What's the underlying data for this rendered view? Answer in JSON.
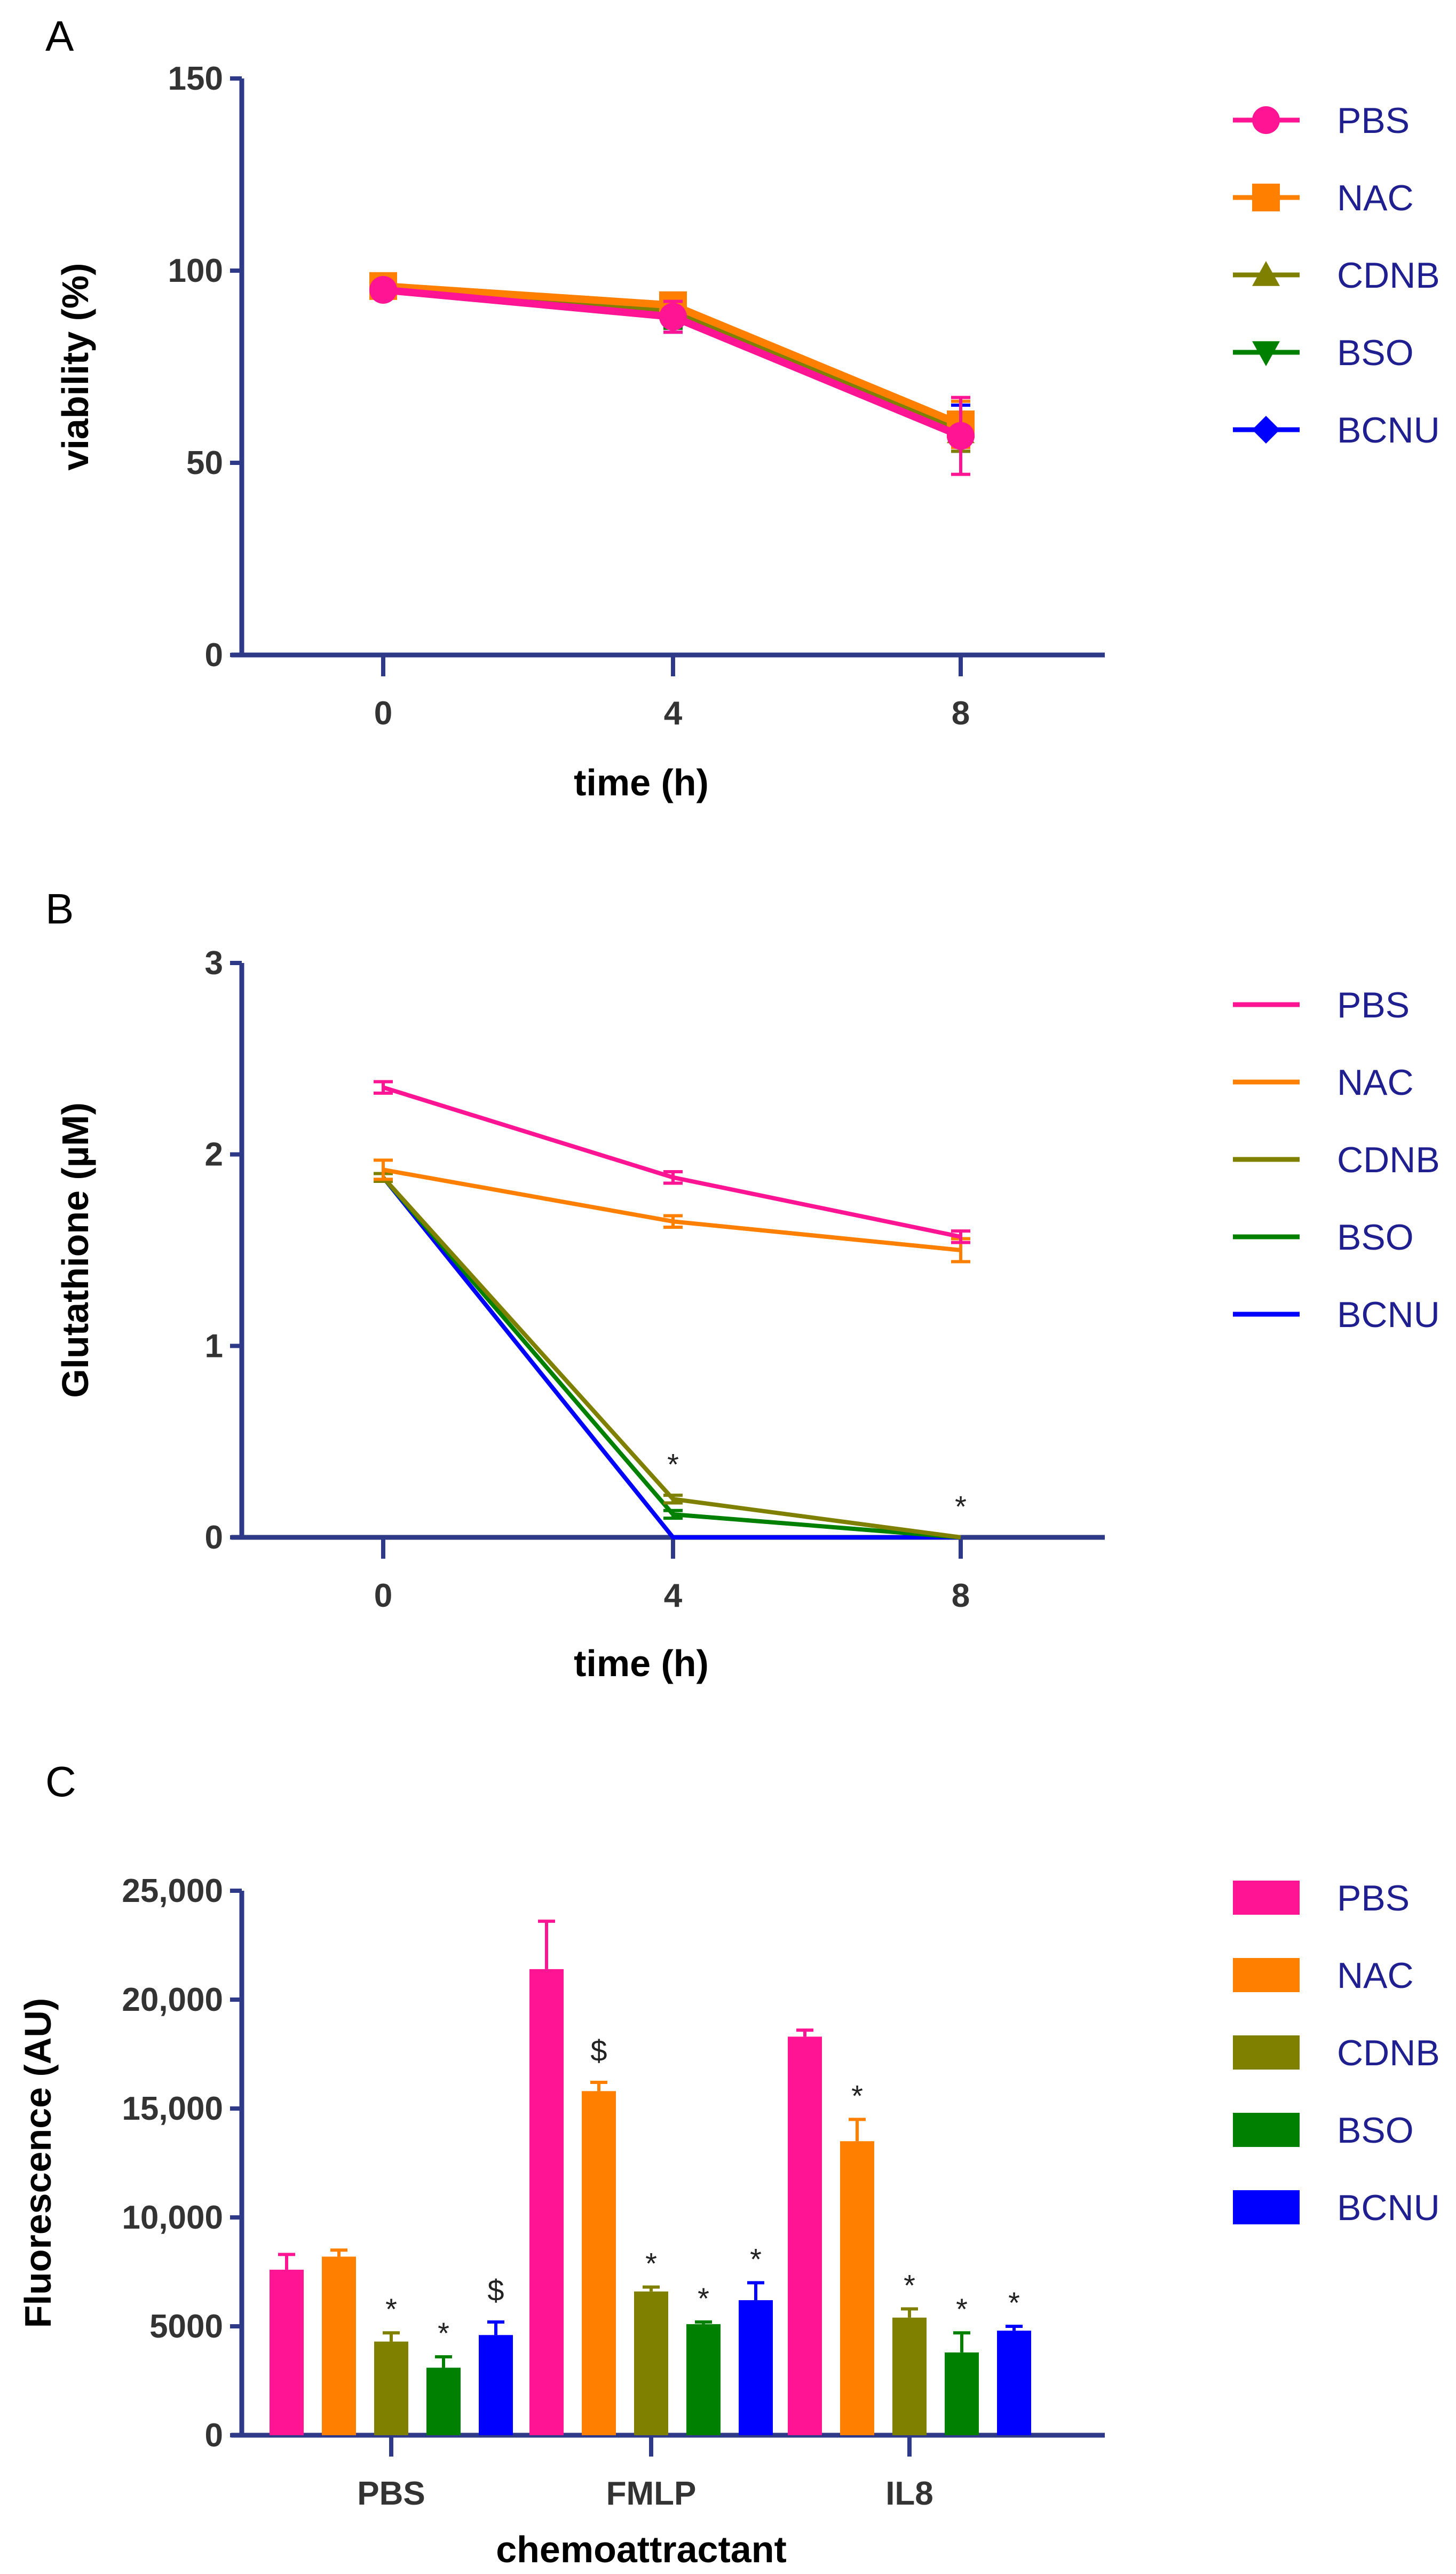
{
  "colors": {
    "PBS": "#ff1493",
    "NAC": "#ff8000",
    "CDNB": "#808000",
    "BSO": "#008000",
    "BCNU": "#0000ff",
    "axis": "#2e3a87"
  },
  "chart_data": [
    {
      "panel": "A",
      "type": "line",
      "xlabel": "time (h)",
      "ylabel": "viability (%)",
      "x": [
        0,
        4,
        8
      ],
      "xticks": [
        "0",
        "4",
        "8"
      ],
      "yticks": [
        "0",
        "50",
        "100",
        "150"
      ],
      "ylim": [
        0,
        150
      ],
      "legend": "right",
      "series": [
        {
          "name": "PBS",
          "marker": "circle",
          "values": [
            95,
            88,
            57
          ],
          "errors": [
            1.5,
            4,
            10
          ]
        },
        {
          "name": "NAC",
          "marker": "square",
          "values": [
            96,
            91,
            60
          ],
          "errors": [
            1.5,
            3,
            6
          ]
        },
        {
          "name": "CDNB",
          "marker": "triangle",
          "values": [
            96,
            90,
            58
          ],
          "errors": [
            1.5,
            4,
            5
          ]
        },
        {
          "name": "BSO",
          "marker": "triangle-down",
          "values": [
            95,
            89,
            59
          ],
          "errors": [
            1.5,
            4,
            4
          ]
        },
        {
          "name": "BCNU",
          "marker": "diamond",
          "values": [
            95,
            89,
            59
          ],
          "errors": [
            1.5,
            5,
            6
          ]
        }
      ]
    },
    {
      "panel": "B",
      "type": "line",
      "xlabel": "time (h)",
      "ylabel": "Glutathione (µM)",
      "x": [
        0,
        4,
        8
      ],
      "xticks": [
        "0",
        "4",
        "8"
      ],
      "yticks": [
        "0",
        "1",
        "2",
        "3"
      ],
      "ylim": [
        0,
        3
      ],
      "legend": "right",
      "annotations": [
        {
          "x": 4,
          "y": 0.3,
          "text": "*"
        },
        {
          "x": 8,
          "y": 0.08,
          "text": "*"
        }
      ],
      "series": [
        {
          "name": "PBS",
          "values": [
            2.35,
            1.88,
            1.57
          ],
          "errors": [
            0.03,
            0.03,
            0.03
          ]
        },
        {
          "name": "NAC",
          "values": [
            1.92,
            1.65,
            1.5
          ],
          "errors": [
            0.05,
            0.03,
            0.06
          ]
        },
        {
          "name": "CDNB",
          "values": [
            1.88,
            0.2,
            0.0
          ],
          "errors": [
            0.02,
            0.02,
            0.0
          ]
        },
        {
          "name": "BSO",
          "values": [
            1.88,
            0.12,
            0.0
          ],
          "errors": [
            0.02,
            0.02,
            0.0
          ]
        },
        {
          "name": "BCNU",
          "values": [
            1.88,
            0.0,
            0.0
          ],
          "errors": [
            0.02,
            0.0,
            0.0
          ]
        }
      ]
    },
    {
      "panel": "C",
      "type": "bar",
      "xlabel": "chemoattractant",
      "ylabel": "Fluorescence (AU)",
      "categories": [
        "PBS",
        "FMLP",
        "IL8"
      ],
      "yticks": [
        "0",
        "5000",
        "10,000",
        "15,000",
        "20,000",
        "25,000"
      ],
      "ylim": [
        0,
        25000
      ],
      "legend": "right",
      "series": [
        {
          "name": "PBS",
          "values": [
            7600,
            21400,
            18300
          ],
          "errors": [
            700,
            2200,
            300
          ],
          "annotations": [
            "",
            "",
            ""
          ]
        },
        {
          "name": "NAC",
          "values": [
            8200,
            15800,
            13500
          ],
          "errors": [
            300,
            400,
            1000
          ],
          "annotations": [
            "",
            "$",
            "*"
          ]
        },
        {
          "name": "CDNB",
          "values": [
            4300,
            6600,
            5400
          ],
          "errors": [
            400,
            200,
            400
          ],
          "annotations": [
            "*",
            "*",
            "*"
          ]
        },
        {
          "name": "BSO",
          "values": [
            3100,
            5100,
            3800
          ],
          "errors": [
            500,
            100,
            900
          ],
          "annotations": [
            "*",
            "*",
            "*"
          ]
        },
        {
          "name": "BCNU",
          "values": [
            4600,
            6200,
            4800
          ],
          "errors": [
            600,
            800,
            200
          ],
          "annotations": [
            "$",
            "*",
            "*"
          ]
        }
      ]
    }
  ]
}
